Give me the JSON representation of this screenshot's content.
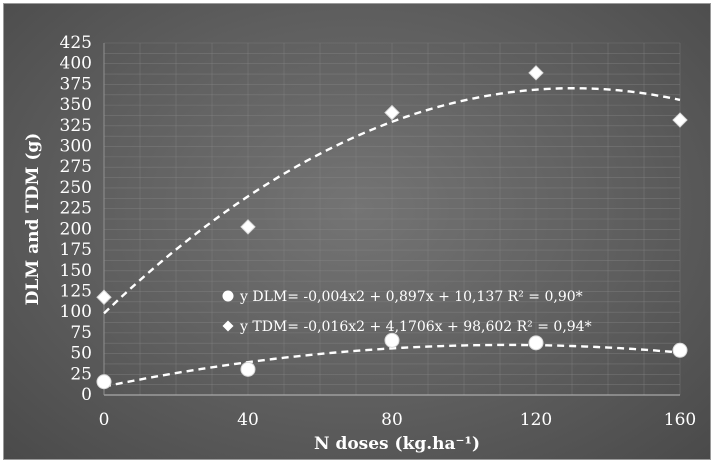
{
  "chart_data": {
    "type": "scatter",
    "xlabel": "N doses (kg.ha⁻¹)",
    "ylabel": "DLM and TDM (g)",
    "x_ticks": [
      0,
      40,
      80,
      120,
      160
    ],
    "y_ticks": [
      0,
      25,
      50,
      75,
      100,
      125,
      150,
      175,
      200,
      225,
      250,
      275,
      300,
      325,
      350,
      375,
      400,
      425
    ],
    "xlim": [
      0,
      160
    ],
    "ylim": [
      0,
      425
    ],
    "grid": true,
    "legend_position": "center-right",
    "series": [
      {
        "key": "dlm",
        "marker": "circle",
        "x": [
          0,
          40,
          80,
          120,
          160
        ],
        "y": [
          16,
          31,
          66,
          63,
          54
        ],
        "fit": {
          "a": -0.004,
          "b": 0.897,
          "c": 10.137
        },
        "legend": "y DLM= -0,004x2 + 0,897x + 10,137   R² = 0,90*"
      },
      {
        "key": "tdm",
        "marker": "diamond",
        "x": [
          0,
          40,
          80,
          120,
          160
        ],
        "y": [
          118,
          203,
          341,
          389,
          332
        ],
        "fit": {
          "a": -0.016,
          "b": 4.1706,
          "c": 98.602
        },
        "legend": "y TDM= -0,016x2 + 4,1706x + 98,602   R² = 0,94*"
      }
    ],
    "colors": {
      "background": "#5e5e5e",
      "marks": "#ffffff",
      "grid": "#8a8a8a"
    }
  }
}
